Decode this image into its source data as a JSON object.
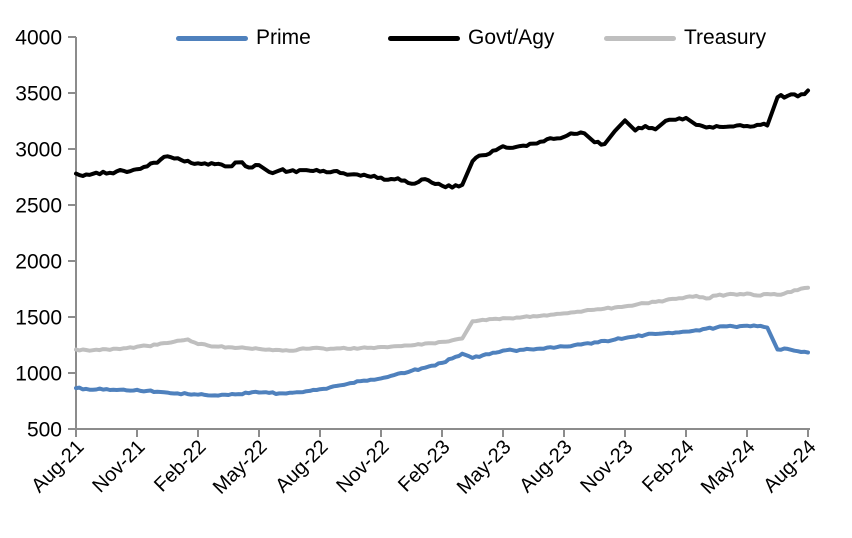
{
  "legend": {
    "items": [
      {
        "label": "Prime",
        "color": "#4F81BD"
      },
      {
        "label": "Govt/Agy",
        "color": "#000000"
      },
      {
        "label": "Treasury",
        "color": "#BFBFBF"
      }
    ]
  },
  "chart_data": {
    "type": "line",
    "title": "",
    "xlabel": "",
    "ylabel": "",
    "grid": false,
    "legend_position": "top",
    "axis_color": "#8C8C8C",
    "text_color": "#000000",
    "ylim": [
      500,
      4000
    ],
    "y_ticks": [
      500,
      1000,
      1500,
      2000,
      2500,
      3000,
      3500,
      4000
    ],
    "x_tick_labels": [
      "Aug-21",
      "Nov-21",
      "Feb-22",
      "May-22",
      "Aug-22",
      "Nov-22",
      "Feb-23",
      "May-23",
      "Aug-23",
      "Nov-23",
      "Feb-24",
      "May-24",
      "Aug-24"
    ],
    "x_start": "Aug-21",
    "x_end": "Aug-24",
    "points_per_month": 2,
    "series": [
      {
        "name": "Prime",
        "color": "#4F81BD",
        "stroke_width": 4,
        "texture_amplitude": 8,
        "values": [
          865,
          858,
          853,
          856,
          848,
          845,
          850,
          840,
          833,
          825,
          818,
          812,
          806,
          800,
          798,
          804,
          812,
          820,
          826,
          822,
          818,
          823,
          828,
          840,
          855,
          872,
          890,
          910,
          928,
          940,
          952,
          975,
          1000,
          1020,
          1042,
          1065,
          1090,
          1130,
          1172,
          1135,
          1158,
          1180,
          1200,
          1203,
          1207,
          1210,
          1217,
          1225,
          1237,
          1248,
          1262,
          1273,
          1287,
          1298,
          1312,
          1326,
          1340,
          1348,
          1356,
          1362,
          1370,
          1382,
          1396,
          1406,
          1416,
          1410,
          1422,
          1418,
          1405,
          1210,
          1215,
          1195,
          1183
        ]
      },
      {
        "name": "Govt/Agy",
        "color": "#000000",
        "stroke_width": 4,
        "texture_amplitude": 16,
        "values": [
          2780,
          2772,
          2788,
          2780,
          2800,
          2795,
          2820,
          2845,
          2878,
          2935,
          2918,
          2895,
          2872,
          2860,
          2868,
          2845,
          2880,
          2835,
          2856,
          2795,
          2808,
          2802,
          2812,
          2806,
          2798,
          2792,
          2786,
          2772,
          2762,
          2752,
          2745,
          2732,
          2718,
          2690,
          2728,
          2700,
          2672,
          2655,
          2680,
          2890,
          2945,
          2985,
          3025,
          3012,
          3030,
          3048,
          3068,
          3090,
          3108,
          3135,
          3140,
          3060,
          3045,
          3160,
          3255,
          3165,
          3205,
          3175,
          3252,
          3262,
          3278,
          3215,
          3192,
          3205,
          3198,
          3210,
          3205,
          3215,
          3210,
          3462,
          3475,
          3470,
          3522
        ]
      },
      {
        "name": "Treasury",
        "color": "#BFBFBF",
        "stroke_width": 4,
        "texture_amplitude": 7,
        "values": [
          1210,
          1205,
          1208,
          1212,
          1216,
          1222,
          1235,
          1242,
          1252,
          1268,
          1288,
          1300,
          1258,
          1245,
          1236,
          1230,
          1226,
          1220,
          1215,
          1210,
          1205,
          1198,
          1214,
          1218,
          1222,
          1216,
          1220,
          1215,
          1222,
          1226,
          1232,
          1236,
          1240,
          1246,
          1254,
          1265,
          1278,
          1292,
          1308,
          1462,
          1475,
          1482,
          1490,
          1487,
          1500,
          1508,
          1515,
          1522,
          1532,
          1542,
          1555,
          1565,
          1575,
          1585,
          1595,
          1608,
          1622,
          1635,
          1650,
          1662,
          1678,
          1688,
          1665,
          1692,
          1700,
          1698,
          1710,
          1692,
          1705,
          1698,
          1722,
          1740,
          1762
        ]
      }
    ]
  }
}
